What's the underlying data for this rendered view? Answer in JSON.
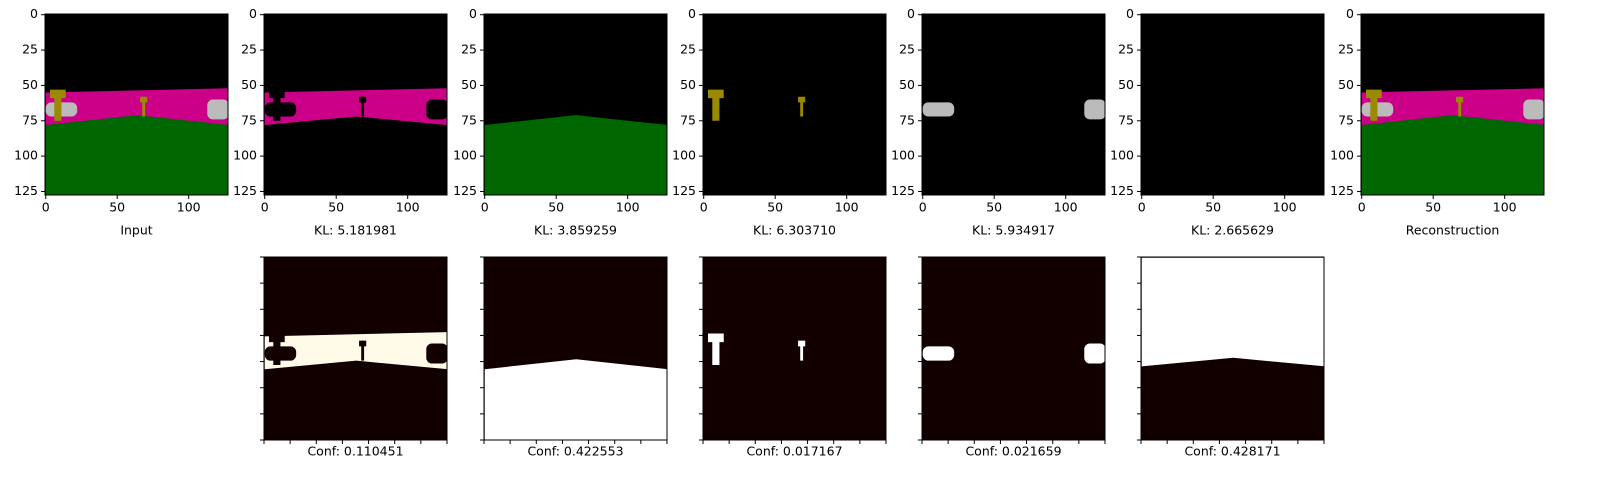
{
  "axes": {
    "xlim": [
      -0.5,
      127.5
    ],
    "ylim": [
      127.5,
      -0.5
    ],
    "xticks": [
      0,
      50,
      100
    ],
    "yticks": [
      0,
      25,
      50,
      75,
      100,
      125
    ]
  },
  "panels": [
    {
      "caption": "Input"
    },
    {
      "caption": "KL: 5.181981"
    },
    {
      "caption": "KL: 3.859259"
    },
    {
      "caption": "KL: 6.303710"
    },
    {
      "caption": "KL: 5.934917"
    },
    {
      "caption": "KL: 2.665629"
    },
    {
      "caption": "Reconstruction"
    }
  ],
  "conf_panels": [
    {
      "caption": "Conf: 0.110451"
    },
    {
      "caption": "Conf: 0.422553"
    },
    {
      "caption": "Conf: 0.017167"
    },
    {
      "caption": "Conf: 0.021659"
    },
    {
      "caption": "Conf: 0.428171"
    }
  ]
}
